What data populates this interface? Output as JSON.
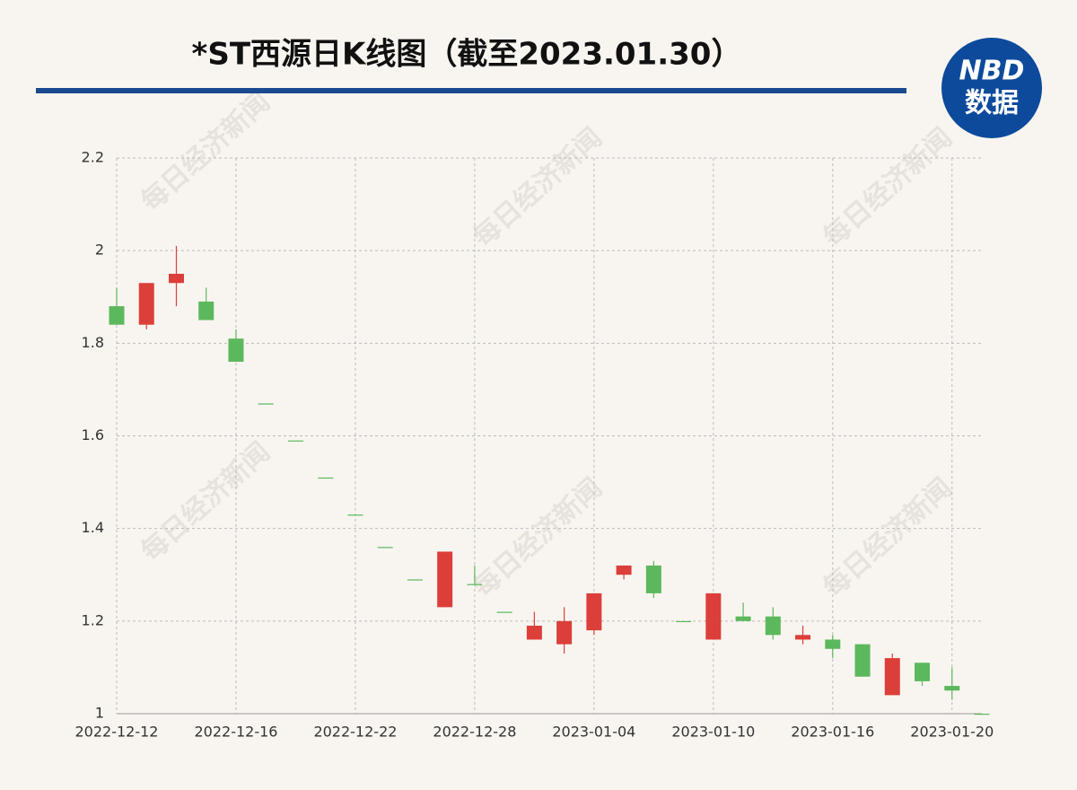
{
  "chart_data": {
    "type": "candlestick",
    "title": "*ST西源日K线图（截至2023.01.30）",
    "logo": {
      "line1": "NBD",
      "line2": "数据"
    },
    "watermark": "每日经济新闻",
    "categories": [
      "2022-12-12",
      null,
      null,
      null,
      "2022-12-16",
      null,
      null,
      null,
      "2022-12-22",
      null,
      null,
      null,
      "2022-12-28",
      null,
      null,
      null,
      "2023-01-04",
      null,
      null,
      null,
      "2023-01-10",
      null,
      null,
      null,
      "2023-01-16",
      null,
      null,
      null,
      "2023-01-20",
      null
    ],
    "open": [
      1.88,
      1.84,
      1.93,
      1.89,
      1.81,
      1.67,
      1.59,
      1.51,
      1.43,
      1.36,
      1.29,
      1.23,
      1.28,
      1.22,
      1.16,
      1.15,
      1.18,
      1.3,
      1.32,
      1.2,
      1.16,
      1.21,
      1.21,
      1.16,
      1.16,
      1.15,
      1.04,
      1.11,
      1.06,
      1.0
    ],
    "close": [
      1.84,
      1.93,
      1.95,
      1.85,
      1.76,
      1.67,
      1.59,
      1.51,
      1.43,
      1.36,
      1.29,
      1.35,
      1.28,
      1.22,
      1.19,
      1.2,
      1.26,
      1.32,
      1.26,
      1.2,
      1.26,
      1.2,
      1.17,
      1.17,
      1.14,
      1.08,
      1.12,
      1.07,
      1.05,
      1.0
    ],
    "high": [
      1.92,
      1.93,
      2.01,
      1.92,
      1.83,
      1.67,
      1.59,
      1.51,
      1.43,
      1.36,
      1.29,
      1.35,
      1.32,
      1.22,
      1.22,
      1.23,
      1.26,
      1.32,
      1.33,
      1.2,
      1.26,
      1.24,
      1.23,
      1.19,
      1.17,
      1.15,
      1.13,
      1.11,
      1.1,
      1.0
    ],
    "low": [
      1.84,
      1.83,
      1.88,
      1.85,
      1.76,
      1.67,
      1.59,
      1.51,
      1.43,
      1.36,
      1.29,
      1.23,
      1.28,
      1.22,
      1.16,
      1.13,
      1.17,
      1.29,
      1.25,
      1.2,
      1.16,
      1.2,
      1.16,
      1.15,
      1.12,
      1.08,
      1.04,
      1.06,
      1.03,
      1.0
    ],
    "up_color": "#dc3f39",
    "down_color": "#5cb85c",
    "ylim": [
      1,
      2.2
    ],
    "yticks": [
      1,
      1.2,
      1.4,
      1.6,
      1.8,
      2,
      2.2
    ],
    "grid": true
  }
}
